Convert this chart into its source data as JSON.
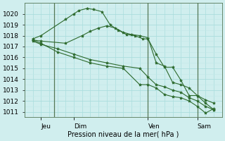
{
  "background_color": "#d0eeee",
  "grid_major_color": "#aadddd",
  "grid_minor_color": "#c0e8e8",
  "line_color": "#2d6a2d",
  "vline_color": "#557755",
  "xlabel": "Pression niveau de la mer( hPa )",
  "ylim": [
    1010.5,
    1021.0
  ],
  "yticks": [
    1011,
    1012,
    1013,
    1014,
    1015,
    1016,
    1017,
    1018,
    1019,
    1020
  ],
  "xlim": [
    0,
    12
  ],
  "xtick_positions": [
    1.0,
    3.0,
    7.5,
    10.5
  ],
  "xtick_labels": [
    "Jeu",
    "Dim",
    "Ven",
    "Sam"
  ],
  "day_vlines": [
    1.8,
    7.5,
    10.5
  ],
  "series": [
    {
      "x": [
        0.5,
        1.0,
        2.5,
        3.0,
        3.3,
        3.8,
        4.2,
        4.7,
        5.2,
        5.7,
        6.2,
        6.7,
        7.2,
        7.5,
        8.0,
        8.5,
        9.0,
        9.5,
        10.0,
        10.5,
        11.0,
        11.5
      ],
      "y": [
        1017.7,
        1018.0,
        1019.5,
        1020.0,
        1020.3,
        1020.5,
        1020.4,
        1020.2,
        1019.0,
        1018.5,
        1018.1,
        1018.0,
        1017.7,
        1017.7,
        1016.3,
        1015.1,
        1015.1,
        1013.9,
        1012.5,
        1012.5,
        1011.8,
        1011.2
      ]
    },
    {
      "x": [
        0.5,
        1.0,
        2.5,
        3.5,
        4.0,
        4.5,
        5.0,
        5.5,
        6.0,
        6.5,
        7.0,
        7.5,
        8.0,
        8.5,
        9.0,
        9.5,
        10.0,
        10.5,
        11.0,
        11.5
      ],
      "y": [
        1017.6,
        1017.5,
        1017.3,
        1018.0,
        1018.4,
        1018.7,
        1018.9,
        1018.7,
        1018.3,
        1018.1,
        1018.0,
        1017.8,
        1015.5,
        1015.2,
        1013.7,
        1013.5,
        1013.2,
        1012.5,
        1012.1,
        1011.8
      ]
    },
    {
      "x": [
        0.5,
        1.0,
        2.0,
        3.0,
        4.0,
        5.0,
        6.0,
        7.0,
        7.5,
        8.0,
        8.5,
        9.0,
        9.5,
        10.0,
        10.5,
        11.0,
        11.5
      ],
      "y": [
        1017.5,
        1017.2,
        1016.8,
        1016.3,
        1015.8,
        1015.5,
        1015.2,
        1015.0,
        1014.2,
        1013.5,
        1013.3,
        1013.0,
        1012.8,
        1012.3,
        1012.0,
        1011.5,
        1011.2
      ]
    },
    {
      "x": [
        0.5,
        1.0,
        2.0,
        3.0,
        4.0,
        5.0,
        6.0,
        7.0,
        7.5,
        8.0,
        8.5,
        9.0,
        9.5,
        10.0,
        10.5,
        11.0,
        11.5
      ],
      "y": [
        1017.6,
        1017.3,
        1016.5,
        1016.0,
        1015.5,
        1015.2,
        1015.0,
        1013.5,
        1013.5,
        1013.2,
        1012.6,
        1012.4,
        1012.3,
        1012.0,
        1011.5,
        1010.9,
        1011.3
      ]
    }
  ]
}
